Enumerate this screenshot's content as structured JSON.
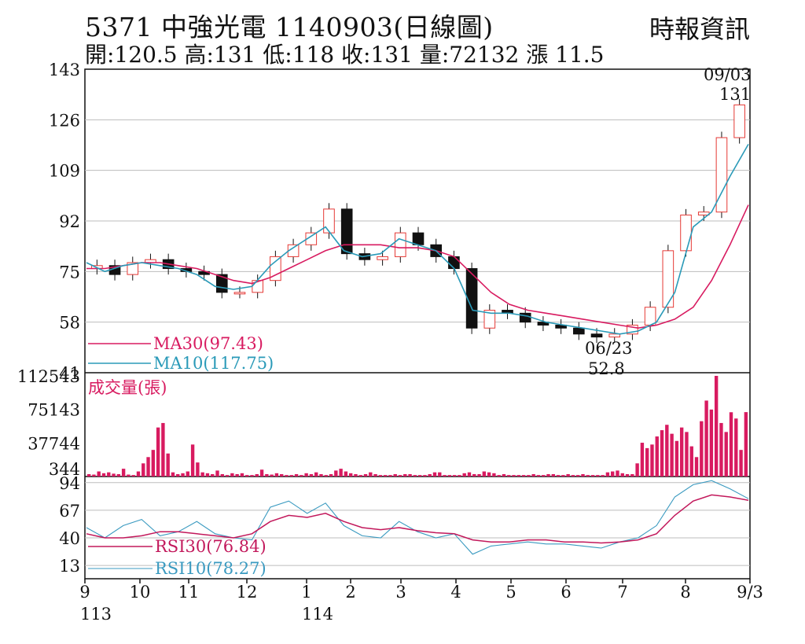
{
  "header": {
    "title": "5371  中強光電 1140903(日線圖)",
    "ohlc": "開:120.5 高:131 低:118 收:131 量:72132 漲 11.5",
    "source": "時報資訊"
  },
  "colors": {
    "candle": "#111111",
    "volume": "#d81b60",
    "ma30": "#d81b60",
    "ma10": "#2a9ab8",
    "rsi30": "#c2185b",
    "rsi10": "#3a9ac0",
    "grid": "#bdbdbd"
  },
  "chart_data": [
    {
      "type": "line",
      "panel": "price",
      "title": "",
      "ylim": [
        41,
        143
      ],
      "y_ticks": [
        "143",
        "126",
        "109",
        "92",
        "75",
        "58",
        "41"
      ],
      "x_ticks": [
        "9",
        "10",
        "11",
        "12",
        "1",
        "2",
        "3",
        "4",
        "5",
        "6",
        "7",
        "8",
        "9/3"
      ],
      "x_year_labels": [
        "113",
        "114"
      ],
      "annotations": [
        {
          "date": "09/03",
          "value": "131"
        },
        {
          "date": "06/23",
          "value": "52.8"
        }
      ],
      "series": [
        {
          "name": "MA30(97.43)",
          "values": [
            76,
            76,
            77,
            78,
            78,
            77,
            76,
            74,
            72,
            71,
            73,
            76,
            79,
            82,
            84,
            84,
            84,
            83,
            83,
            82,
            80,
            74,
            68,
            64,
            62,
            61,
            60,
            59,
            58,
            57,
            56,
            57,
            59,
            63,
            72,
            84,
            97.4
          ]
        },
        {
          "name": "MA10(117.75)",
          "values": [
            78,
            75,
            77,
            78,
            77,
            76,
            74,
            70,
            69,
            70,
            77,
            82,
            86,
            90,
            82,
            80,
            81,
            86,
            84,
            82,
            76,
            62,
            61,
            61,
            60,
            58,
            57,
            56,
            55,
            54,
            55,
            58,
            68,
            90,
            95,
            107,
            117.8
          ]
        }
      ],
      "close_approx": [
        77,
        74,
        78,
        79,
        76,
        75,
        74,
        68,
        68,
        72,
        80,
        84,
        88,
        96,
        81,
        79,
        80,
        88,
        84,
        80,
        76,
        56,
        62,
        61,
        58,
        57,
        56,
        54,
        53,
        54,
        57,
        63,
        82,
        94,
        95,
        120,
        131
      ]
    },
    {
      "type": "bar",
      "panel": "volume",
      "title": "成交量(張)",
      "ylim": [
        344,
        112543
      ],
      "y_ticks": [
        "112543",
        "75143",
        "37744",
        "344"
      ],
      "values": [
        3000,
        2500,
        6000,
        4000,
        5000,
        3500,
        3000,
        9000,
        2500,
        2000,
        6000,
        15000,
        22000,
        30000,
        55000,
        60000,
        26000,
        5000,
        3000,
        4000,
        6000,
        36000,
        16000,
        5000,
        4000,
        3000,
        7000,
        3000,
        2000,
        4000,
        3000,
        4000,
        2000,
        2000,
        3000,
        8000,
        3000,
        2500,
        4000,
        3000,
        2000,
        2000,
        3000,
        2000,
        4000,
        3000,
        5000,
        3000,
        2000,
        3000,
        7000,
        9000,
        6000,
        4000,
        3000,
        2000,
        3000,
        5000,
        3000,
        2000,
        2000,
        2000,
        3000,
        2000,
        3000,
        3000,
        2000,
        2000,
        2000,
        3000,
        5000,
        5000,
        2000,
        2000,
        2000,
        2000,
        4000,
        5000,
        3000,
        3000,
        6000,
        5000,
        4000,
        2000,
        3000,
        2000,
        2000,
        2000,
        2000,
        2000,
        3000,
        2000,
        2000,
        3000,
        3000,
        2000,
        2000,
        3000,
        2000,
        2000,
        3000,
        2000,
        2000,
        2000,
        2000,
        5000,
        6000,
        7000,
        4000,
        3000,
        3000,
        15000,
        38000,
        32000,
        36000,
        45000,
        52000,
        58000,
        48000,
        40000,
        55000,
        50000,
        34000,
        22000,
        62000,
        85000,
        75000,
        112543,
        60000,
        50000,
        72000,
        65000,
        30000,
        72132
      ]
    },
    {
      "type": "line",
      "panel": "rsi",
      "title": "",
      "ylim": [
        0,
        100
      ],
      "y_ticks": [
        "94",
        "67",
        "40",
        "13"
      ],
      "series": [
        {
          "name": "RSI30(76.84)",
          "values": [
            44,
            40,
            40,
            42,
            46,
            46,
            44,
            42,
            40,
            44,
            56,
            62,
            60,
            64,
            56,
            50,
            48,
            50,
            47,
            45,
            44,
            38,
            36,
            36,
            38,
            38,
            36,
            36,
            35,
            36,
            38,
            44,
            62,
            76,
            82,
            80,
            76.8
          ]
        },
        {
          "name": "RSI10(78.27)",
          "values": [
            50,
            40,
            52,
            58,
            42,
            46,
            56,
            44,
            40,
            38,
            70,
            76,
            64,
            74,
            52,
            42,
            40,
            56,
            46,
            40,
            44,
            24,
            32,
            34,
            36,
            34,
            34,
            32,
            30,
            36,
            40,
            52,
            80,
            92,
            96,
            88,
            78.3
          ]
        }
      ]
    }
  ]
}
